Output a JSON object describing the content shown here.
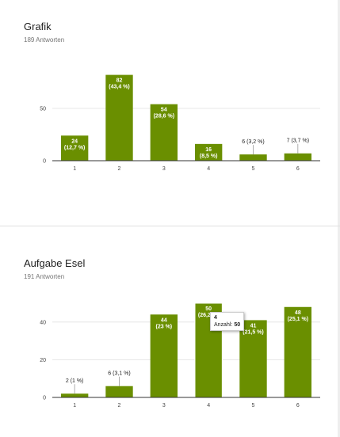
{
  "questions": [
    {
      "title": "Grafik",
      "responses": "189 Antworten"
    },
    {
      "title": "Aufgabe Esel",
      "responses": "191 Antworten"
    }
  ],
  "tooltip": {
    "category": "4",
    "label": "Anzahl:",
    "value": "50"
  },
  "colors": {
    "bar": "#6a8f00",
    "bar_highlight": "#8bb31a"
  },
  "chart_data": [
    {
      "type": "bar",
      "categories": [
        "1",
        "2",
        "3",
        "4",
        "5",
        "6"
      ],
      "values": [
        24,
        82,
        54,
        16,
        6,
        7
      ],
      "labels": [
        "24\n(12,7 %)",
        "82\n(43,4 %)",
        "54\n(28,6 %)",
        "16\n(8,5 %)",
        "6 (3,2 %)",
        "7 (3,7 %)"
      ],
      "yticks": [
        0,
        50
      ],
      "ylim": [
        0,
        90
      ],
      "title": "",
      "xlabel": "",
      "ylabel": ""
    },
    {
      "type": "bar",
      "categories": [
        "1",
        "2",
        "3",
        "4",
        "5",
        "6"
      ],
      "values": [
        2,
        6,
        44,
        50,
        41,
        48
      ],
      "labels": [
        "2 (1 %)",
        "6 (3,1 %)",
        "44\n(23 %)",
        "50\n(26,2 %)",
        "41\n(21,5 %)",
        "48\n(25,1 %)"
      ],
      "yticks": [
        0,
        20,
        40
      ],
      "ylim": [
        0,
        50
      ],
      "highlight": 3,
      "title": "",
      "xlabel": "",
      "ylabel": ""
    }
  ]
}
